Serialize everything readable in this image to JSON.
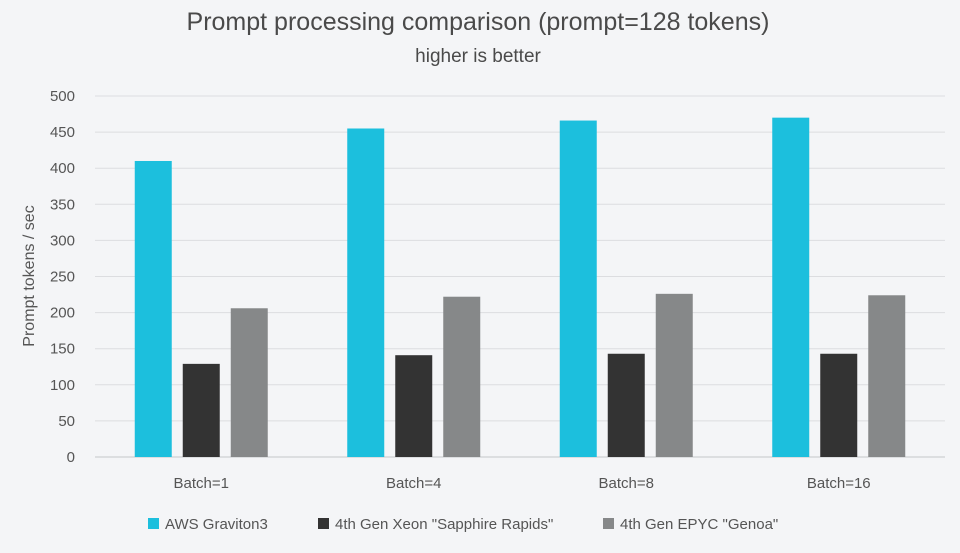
{
  "chart_data": {
    "type": "bar",
    "title": "Prompt processing comparison (prompt=128 tokens)",
    "subtitle": "higher is better",
    "xlabel": "",
    "ylabel": "Prompt tokens / sec",
    "ylim": [
      0,
      500
    ],
    "yticks": [
      0,
      50,
      100,
      150,
      200,
      250,
      300,
      350,
      400,
      450,
      500
    ],
    "grid": true,
    "legend_position": "bottom",
    "categories": [
      "Batch=1",
      "Batch=4",
      "Batch=8",
      "Batch=16"
    ],
    "series": [
      {
        "name": "AWS Graviton3",
        "color": "#1cbfdd",
        "values": [
          410,
          455,
          466,
          470
        ]
      },
      {
        "name": "4th Gen Xeon \"Sapphire Rapids\"",
        "color": "#333333",
        "values": [
          129,
          141,
          143,
          143
        ]
      },
      {
        "name": "4th Gen EPYC \"Genoa\"",
        "color": "#868889",
        "values": [
          206,
          222,
          226,
          224
        ]
      }
    ]
  }
}
